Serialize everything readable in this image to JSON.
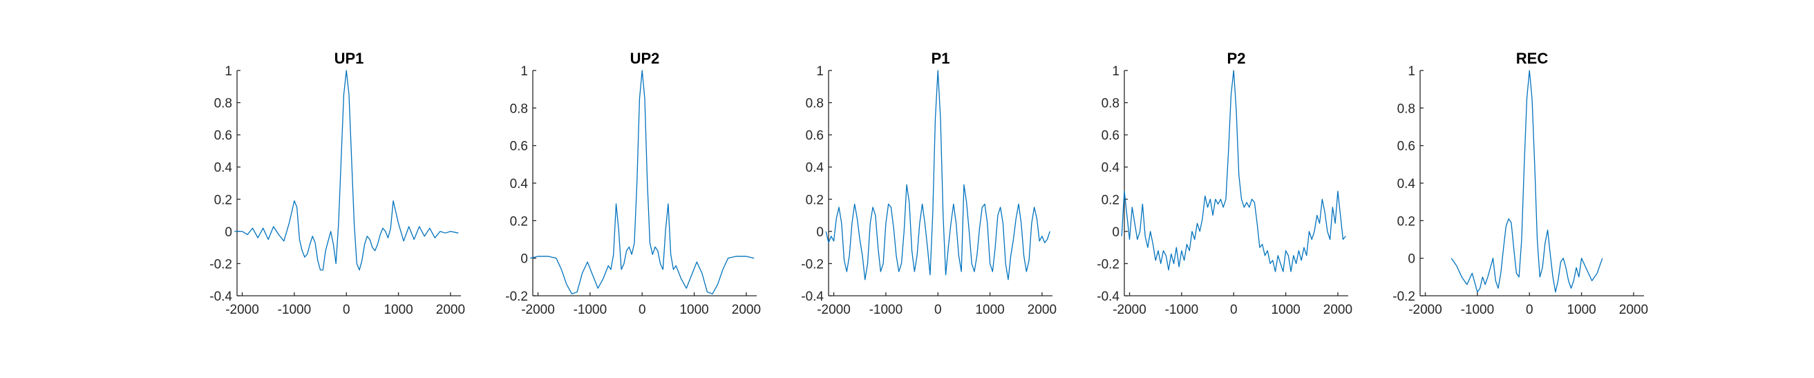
{
  "chart_data": [
    {
      "type": "line",
      "title": "UP1",
      "xlabel": "",
      "ylabel": "",
      "xlim": [
        -2100,
        2200
      ],
      "ylim": [
        -0.4,
        1
      ],
      "xticks": [
        -2000,
        -1000,
        0,
        1000,
        2000
      ],
      "xtick_labels": [
        "-2000",
        "-1000",
        "0",
        "1000",
        "2000"
      ],
      "yticks": [
        -0.4,
        -0.2,
        0,
        0.2,
        0.4,
        0.6,
        0.8,
        1
      ],
      "ytick_labels": [
        "-0.4",
        "-0.2",
        "0",
        "0.2",
        "0.4",
        "0.6",
        "0.8",
        "1"
      ],
      "color": "#0072BD",
      "grid": false,
      "series": [
        {
          "x": [
            -2150,
            -2000,
            -1900,
            -1800,
            -1700,
            -1600,
            -1500,
            -1400,
            -1300,
            -1200,
            -1100,
            -1000,
            -950,
            -900,
            -850,
            -800,
            -750,
            -700,
            -650,
            -600,
            -550,
            -500,
            -450,
            -400,
            -350,
            -300,
            -250,
            -200,
            -150,
            -100,
            -50,
            0,
            50,
            100,
            150,
            200,
            250,
            300,
            350,
            400,
            450,
            500,
            550,
            600,
            650,
            700,
            750,
            800,
            850,
            900,
            950,
            1000,
            1100,
            1200,
            1300,
            1400,
            1500,
            1600,
            1700,
            1800,
            1900,
            2000,
            2150
          ],
          "y": [
            0.0,
            0.0,
            -0.02,
            0.02,
            -0.04,
            0.02,
            -0.05,
            0.03,
            -0.02,
            -0.06,
            0.05,
            0.19,
            0.15,
            -0.05,
            -0.12,
            -0.16,
            -0.14,
            -0.08,
            -0.03,
            -0.07,
            -0.18,
            -0.24,
            -0.24,
            -0.12,
            -0.06,
            0.0,
            -0.08,
            -0.2,
            0.05,
            0.45,
            0.85,
            1.0,
            0.85,
            0.45,
            0.05,
            -0.2,
            -0.24,
            -0.18,
            -0.08,
            -0.03,
            -0.05,
            -0.1,
            -0.12,
            -0.08,
            -0.02,
            0.02,
            0.0,
            -0.04,
            0.02,
            0.19,
            0.12,
            0.05,
            -0.06,
            0.03,
            -0.05,
            0.03,
            -0.03,
            0.02,
            -0.04,
            0.0,
            -0.01,
            0.0,
            -0.01
          ]
        }
      ]
    },
    {
      "type": "line",
      "title": "UP2",
      "xlabel": "",
      "ylabel": "",
      "xlim": [
        -2100,
        2200
      ],
      "ylim": [
        -0.2,
        1
      ],
      "xticks": [
        -2000,
        -1000,
        0,
        1000,
        2000
      ],
      "xtick_labels": [
        "-2000",
        "-1000",
        "0",
        "1000",
        "2000"
      ],
      "yticks": [
        -0.2,
        0,
        0.2,
        0.4,
        0.6,
        0.8,
        1
      ],
      "ytick_labels": [
        "-0.2",
        "0",
        "0.2",
        "0.4",
        "0.6",
        "0.8",
        "1"
      ],
      "color": "#0072BD",
      "grid": false,
      "series": [
        {
          "x": [
            -2150,
            -2000,
            -1800,
            -1650,
            -1550,
            -1450,
            -1350,
            -1250,
            -1150,
            -1050,
            -950,
            -850,
            -750,
            -650,
            -600,
            -550,
            -500,
            -450,
            -400,
            -350,
            -300,
            -250,
            -200,
            -150,
            -100,
            -50,
            0,
            50,
            100,
            150,
            200,
            250,
            300,
            350,
            400,
            450,
            500,
            550,
            600,
            650,
            750,
            850,
            950,
            1050,
            1150,
            1250,
            1350,
            1450,
            1550,
            1650,
            1800,
            2000,
            2150
          ],
          "y": [
            0.0,
            0.01,
            0.01,
            0.0,
            -0.06,
            -0.14,
            -0.19,
            -0.18,
            -0.08,
            -0.02,
            -0.09,
            -0.16,
            -0.11,
            -0.04,
            -0.06,
            0.02,
            0.29,
            0.15,
            -0.06,
            -0.03,
            0.04,
            0.06,
            0.02,
            0.08,
            0.4,
            0.85,
            1.0,
            0.85,
            0.4,
            0.08,
            0.02,
            0.06,
            0.04,
            -0.03,
            -0.06,
            0.15,
            0.29,
            0.02,
            -0.06,
            -0.04,
            -0.11,
            -0.16,
            -0.09,
            -0.02,
            -0.08,
            -0.18,
            -0.19,
            -0.14,
            -0.06,
            0.0,
            0.01,
            0.01,
            0.0
          ]
        }
      ]
    },
    {
      "type": "line",
      "title": "P1",
      "xlabel": "",
      "ylabel": "",
      "xlim": [
        -2100,
        2200
      ],
      "ylim": [
        -0.4,
        1
      ],
      "xticks": [
        -2000,
        -1000,
        0,
        1000,
        2000
      ],
      "xtick_labels": [
        "-2000",
        "-1000",
        "0",
        "1000",
        "2000"
      ],
      "yticks": [
        -0.4,
        -0.2,
        0,
        0.2,
        0.4,
        0.6,
        0.8,
        1
      ],
      "ytick_labels": [
        "-0.4",
        "-0.2",
        "0",
        "0.2",
        "0.4",
        "0.6",
        "0.8",
        "1"
      ],
      "color": "#0072BD",
      "grid": false,
      "series": [
        {
          "x": [
            -2150,
            -2100,
            -2050,
            -2000,
            -1950,
            -1900,
            -1850,
            -1800,
            -1750,
            -1700,
            -1650,
            -1600,
            -1550,
            -1500,
            -1450,
            -1400,
            -1350,
            -1300,
            -1250,
            -1200,
            -1150,
            -1100,
            -1050,
            -1000,
            -950,
            -900,
            -850,
            -800,
            -750,
            -700,
            -650,
            -600,
            -550,
            -500,
            -450,
            -400,
            -350,
            -300,
            -250,
            -200,
            -150,
            -100,
            -50,
            0,
            50,
            100,
            150,
            200,
            250,
            300,
            350,
            400,
            450,
            500,
            550,
            600,
            650,
            700,
            750,
            800,
            850,
            900,
            950,
            1000,
            1050,
            1100,
            1150,
            1200,
            1250,
            1300,
            1350,
            1400,
            1450,
            1500,
            1550,
            1600,
            1650,
            1700,
            1750,
            1800,
            1850,
            1900,
            1950,
            2000,
            2050,
            2100,
            2150
          ],
          "y": [
            0.0,
            -0.07,
            -0.03,
            -0.06,
            0.08,
            0.15,
            0.05,
            -0.18,
            -0.25,
            -0.15,
            0.05,
            0.17,
            0.08,
            -0.05,
            -0.15,
            -0.3,
            -0.2,
            0.05,
            0.15,
            0.1,
            -0.1,
            -0.25,
            -0.2,
            0.05,
            0.17,
            0.15,
            0.02,
            -0.15,
            -0.25,
            -0.2,
            0.0,
            0.29,
            0.18,
            -0.12,
            -0.25,
            -0.15,
            0.05,
            0.17,
            0.05,
            -0.1,
            -0.27,
            0.1,
            0.7,
            1.0,
            0.7,
            0.1,
            -0.27,
            -0.1,
            0.05,
            0.17,
            0.05,
            -0.15,
            -0.25,
            0.29,
            0.18,
            0.0,
            -0.2,
            -0.25,
            -0.15,
            0.02,
            0.15,
            0.17,
            0.05,
            -0.2,
            -0.25,
            -0.1,
            0.1,
            0.15,
            0.05,
            -0.2,
            -0.3,
            -0.15,
            -0.05,
            0.08,
            0.17,
            0.05,
            -0.15,
            -0.25,
            -0.18,
            0.05,
            0.15,
            0.08,
            -0.06,
            -0.03,
            -0.07,
            -0.05,
            0.0
          ]
        }
      ]
    },
    {
      "type": "line",
      "title": "P2",
      "xlabel": "",
      "ylabel": "",
      "xlim": [
        -2100,
        2200
      ],
      "ylim": [
        -0.4,
        1
      ],
      "xticks": [
        -2000,
        -1000,
        0,
        1000,
        2000
      ],
      "xtick_labels": [
        "-2000",
        "-1000",
        "0",
        "1000",
        "2000"
      ],
      "yticks": [
        -0.4,
        -0.2,
        0,
        0.2,
        0.4,
        0.6,
        0.8,
        1
      ],
      "ytick_labels": [
        "-0.4",
        "-0.2",
        "0",
        "0.2",
        "0.4",
        "0.6",
        "0.8",
        "1"
      ],
      "color": "#0072BD",
      "grid": false,
      "series": [
        {
          "x": [
            -2150,
            -2100,
            -2050,
            -2000,
            -1950,
            -1900,
            -1850,
            -1800,
            -1750,
            -1700,
            -1650,
            -1600,
            -1550,
            -1500,
            -1450,
            -1400,
            -1350,
            -1300,
            -1250,
            -1200,
            -1150,
            -1100,
            -1050,
            -1000,
            -950,
            -900,
            -850,
            -800,
            -750,
            -700,
            -650,
            -600,
            -550,
            -500,
            -450,
            -400,
            -350,
            -300,
            -250,
            -200,
            -150,
            -100,
            -50,
            0,
            50,
            100,
            150,
            200,
            250,
            300,
            350,
            400,
            450,
            500,
            550,
            600,
            650,
            700,
            750,
            800,
            850,
            900,
            950,
            1000,
            1050,
            1100,
            1150,
            1200,
            1250,
            1300,
            1350,
            1400,
            1450,
            1500,
            1550,
            1600,
            1650,
            1700,
            1750,
            1800,
            1850,
            1900,
            1950,
            2000,
            2050,
            2100,
            2150
          ],
          "y": [
            -0.03,
            0.25,
            0.1,
            -0.05,
            0.15,
            0.05,
            -0.05,
            0.0,
            0.17,
            -0.03,
            -0.1,
            0.0,
            -0.08,
            -0.18,
            -0.12,
            -0.2,
            -0.12,
            -0.15,
            -0.24,
            -0.14,
            -0.2,
            -0.1,
            -0.22,
            -0.12,
            -0.18,
            -0.08,
            -0.12,
            0.0,
            -0.05,
            0.05,
            0.0,
            0.08,
            0.22,
            0.15,
            0.2,
            0.1,
            0.2,
            0.17,
            0.2,
            0.15,
            0.2,
            0.5,
            0.85,
            1.0,
            0.75,
            0.35,
            0.2,
            0.15,
            0.18,
            0.15,
            0.2,
            0.18,
            0.05,
            -0.1,
            -0.08,
            -0.15,
            -0.12,
            -0.2,
            -0.18,
            -0.25,
            -0.15,
            -0.2,
            -0.25,
            -0.12,
            -0.15,
            -0.25,
            -0.15,
            -0.2,
            -0.12,
            -0.18,
            -0.1,
            -0.15,
            0.0,
            -0.05,
            0.0,
            0.1,
            0.05,
            0.2,
            0.12,
            0.0,
            -0.05,
            0.15,
            0.05,
            0.25,
            0.1,
            -0.05,
            -0.03
          ]
        }
      ]
    },
    {
      "type": "line",
      "title": "REC",
      "xlabel": "",
      "ylabel": "",
      "xlim": [
        -2100,
        2200
      ],
      "ylim": [
        -0.2,
        1
      ],
      "xticks": [
        -2000,
        -1000,
        0,
        1000,
        2000
      ],
      "xtick_labels": [
        "-2000",
        "-1000",
        "0",
        "1000",
        "2000"
      ],
      "yticks": [
        -0.2,
        0,
        0.2,
        0.4,
        0.6,
        0.8,
        1
      ],
      "ytick_labels": [
        "-0.2",
        "0",
        "0.2",
        "0.4",
        "0.6",
        "0.8",
        "1"
      ],
      "color": "#0072BD",
      "grid": false,
      "series": [
        {
          "x": [
            -1500,
            -1400,
            -1300,
            -1200,
            -1100,
            -1000,
            -950,
            -900,
            -850,
            -800,
            -750,
            -700,
            -650,
            -600,
            -550,
            -500,
            -450,
            -400,
            -350,
            -300,
            -250,
            -200,
            -150,
            -100,
            -50,
            0,
            50,
            100,
            150,
            200,
            250,
            300,
            350,
            400,
            450,
            500,
            550,
            600,
            650,
            700,
            750,
            800,
            850,
            900,
            950,
            1000,
            1100,
            1200,
            1300,
            1400
          ],
          "y": [
            0.0,
            -0.04,
            -0.1,
            -0.14,
            -0.08,
            -0.18,
            -0.16,
            -0.1,
            -0.14,
            -0.1,
            -0.05,
            0.0,
            -0.12,
            -0.16,
            -0.08,
            0.05,
            0.17,
            0.21,
            0.19,
            0.05,
            -0.08,
            -0.1,
            0.1,
            0.5,
            0.85,
            1.0,
            0.85,
            0.5,
            0.1,
            -0.1,
            -0.05,
            0.08,
            0.15,
            0.02,
            -0.1,
            -0.18,
            -0.12,
            -0.02,
            0.0,
            -0.05,
            -0.12,
            -0.16,
            -0.12,
            -0.05,
            -0.1,
            0.0,
            -0.06,
            -0.12,
            -0.08,
            0.0
          ]
        }
      ]
    }
  ]
}
